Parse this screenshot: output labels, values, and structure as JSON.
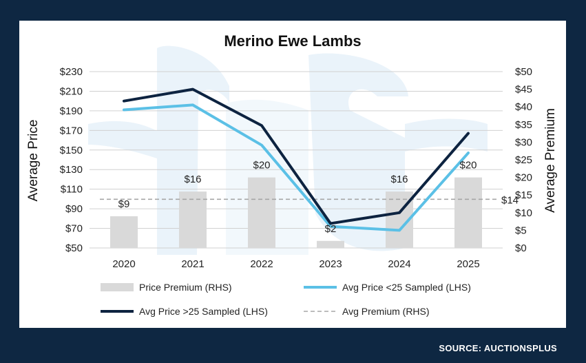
{
  "source": "SOURCE: AUCTIONSPLUS",
  "colors": {
    "page_bg": "#0e2742",
    "panel_bg": "#ffffff",
    "watermark": "#eaf3fa",
    "bar": "#d9d9d9",
    "line_under25": "#5bc0e6",
    "line_over25": "#0d2340",
    "avg_premium": "#a6a6a6",
    "gridline": "#d0d0d0"
  },
  "chart_data": {
    "type": "bar+line",
    "title": "Merino Ewe Lambs",
    "xlabel": "",
    "ylabel": "Average Price",
    "y2label": "Average Premium",
    "categories": [
      "2020",
      "2021",
      "2022",
      "2023",
      "2024",
      "2025"
    ],
    "ylim": [
      50,
      230
    ],
    "yticks": [
      50,
      70,
      90,
      110,
      130,
      150,
      170,
      190,
      210,
      230
    ],
    "ytick_labels": [
      "$50",
      "$70",
      "$90",
      "$110",
      "$130",
      "$150",
      "$170",
      "$190",
      "$210",
      "$230"
    ],
    "y2lim": [
      0,
      50
    ],
    "y2ticks": [
      0,
      5,
      10,
      15,
      20,
      25,
      30,
      35,
      40,
      45,
      50
    ],
    "y2tick_labels": [
      "$0",
      "$5",
      "$10",
      "$15",
      "$20",
      "$25",
      "$30",
      "$35",
      "$40",
      "$45",
      "$50"
    ],
    "grid": true,
    "legend_position": "bottom",
    "series": [
      {
        "name": "Price Premium (RHS)",
        "kind": "bar",
        "axis": "right",
        "values": [
          9,
          16,
          20,
          2,
          16,
          20
        ],
        "labels": [
          "$9",
          "$16",
          "$20",
          "$2",
          "$16",
          "$20"
        ]
      },
      {
        "name": "Avg Price <25 Sampled (LHS)",
        "kind": "line",
        "axis": "left",
        "values": [
          191,
          196,
          155,
          72,
          68,
          147
        ]
      },
      {
        "name": "Avg Price >25 Sampled (LHS)",
        "kind": "line",
        "axis": "left",
        "values": [
          200,
          212,
          175,
          75,
          86,
          167
        ]
      },
      {
        "name": "Avg Premium (RHS)",
        "kind": "dashed-line",
        "axis": "right",
        "value": 13.8,
        "label": "$14"
      }
    ]
  }
}
